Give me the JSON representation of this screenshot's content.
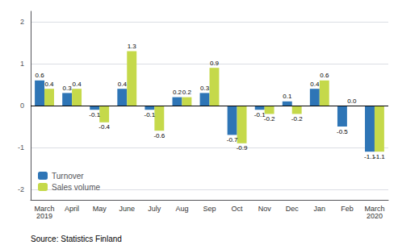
{
  "chart_data": {
    "type": "bar",
    "categories": [
      "March\n2019",
      "April",
      "May",
      "June",
      "July",
      "Aug",
      "Sep",
      "Oct",
      "Nov",
      "Dec",
      "Jan",
      "Feb",
      "March\n2020"
    ],
    "series": [
      {
        "name": "Turnover",
        "color": "#2e75b6",
        "values": [
          0.6,
          0.3,
          -0.1,
          0.4,
          -0.1,
          0.2,
          0.3,
          -0.7,
          -0.1,
          0.1,
          0.4,
          -0.5,
          -1.1
        ],
        "value_labels": [
          "0.6",
          "0.3",
          "-0.1",
          "0.4",
          "-0.1",
          "0.2",
          "0.3",
          "-0.7",
          "-0.1",
          "0.1",
          "0.4",
          "-0.5",
          "-1.1"
        ]
      },
      {
        "name": "Sales volume",
        "color": "#c5d94a",
        "values": [
          0.4,
          0.4,
          -0.4,
          1.3,
          -0.6,
          0.2,
          0.9,
          -0.9,
          -0.2,
          -0.2,
          0.6,
          0.0,
          -1.1
        ],
        "value_labels": [
          "0.4",
          "0.4",
          "-0.4",
          "1.3",
          "-0.6",
          "0.2",
          "0.9",
          "-0.9",
          "-0.2",
          "-0.2",
          "0.6",
          "0.0",
          "-1.1"
        ]
      }
    ],
    "ylim": [
      -2.25,
      2.25
    ],
    "yticks": [
      -2,
      -1,
      0,
      1,
      2
    ],
    "grid": true,
    "legend": "lower left",
    "data_labels": true,
    "annotations": [
      "Source: Statistics Finland"
    ]
  }
}
